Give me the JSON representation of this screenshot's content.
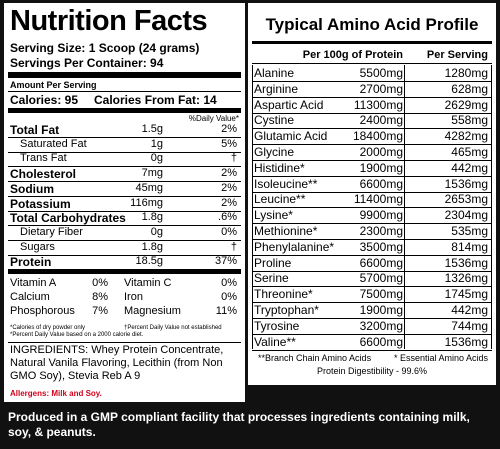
{
  "nutrition": {
    "title": "Nutrition Facts",
    "serving_size": "Serving Size: 1 Scoop (24 grams)",
    "servings": "Servings Per Container: 94",
    "amount_per_serving": "Amount Per Serving",
    "calories": "Calories: 95",
    "calories_fat": "Calories From Fat: 14",
    "dv_header": "%Daily Value*",
    "rows": [
      {
        "name": "Total Fat",
        "amount": "1.5g",
        "dv": "2%",
        "bold": true,
        "indent": false
      },
      {
        "name": "Saturated Fat",
        "amount": "1g",
        "dv": "5%",
        "bold": false,
        "indent": true
      },
      {
        "name": "Trans Fat",
        "amount": "0g",
        "dv": "†",
        "bold": false,
        "indent": true
      },
      {
        "name": "Cholesterol",
        "amount": "7mg",
        "dv": "2%",
        "bold": true,
        "indent": false
      },
      {
        "name": "Sodium",
        "amount": "45mg",
        "dv": "2%",
        "bold": true,
        "indent": false
      },
      {
        "name": "Potassium",
        "amount": "116mg",
        "dv": "2%",
        "bold": true,
        "indent": false
      },
      {
        "name": "Total Carbohydrates",
        "amount": "1.8g",
        "dv": ".6%",
        "bold": true,
        "indent": false
      },
      {
        "name": "Dietary Fiber",
        "amount": "0g",
        "dv": "0%",
        "bold": false,
        "indent": true
      },
      {
        "name": "Sugars",
        "amount": "1.8g",
        "dv": "†",
        "bold": false,
        "indent": true
      },
      {
        "name": "Protein",
        "amount": "18.5g",
        "dv": "37%",
        "bold": true,
        "indent": false
      }
    ],
    "vitamins": [
      [
        "Vitamin A",
        "0%",
        "Vitamin C",
        "0%"
      ],
      [
        "Calcium",
        "8%",
        "Iron",
        "0%"
      ],
      [
        "Phosphorous",
        "7%",
        "Magnesium",
        "11%"
      ]
    ],
    "footnote_calories": "*Calories of dry powder only",
    "footnote_percent": "*Percent Daily Value based on a 2000 calorie diet.",
    "footnote_dagger": "†Percent Daily Value not established",
    "ingredients": "INGREDIENTS: Whey Protein Concentrate, Natural Vanila Flavoring, Lecithin (from Non GMO Soy), Stevia Reb A 9",
    "allergens": "Allergens: Milk and Soy."
  },
  "amino": {
    "title": "Typical Amino Acid Profile",
    "header_100g": "Per 100g of Protein",
    "header_serving": "Per Serving",
    "rows": [
      [
        "Alanine",
        "5500mg",
        "1280mg"
      ],
      [
        "Arginine",
        "2700mg",
        "628mg"
      ],
      [
        "Aspartic Acid",
        "11300mg",
        "2629mg"
      ],
      [
        "Cystine",
        "2400mg",
        "558mg"
      ],
      [
        "Glutamic Acid",
        "18400mg",
        "4282mg"
      ],
      [
        "Glycine",
        "2000mg",
        "465mg"
      ],
      [
        "Histidine*",
        "1900mg",
        "442mg"
      ],
      [
        "Isoleucine**",
        "6600mg",
        "1536mg"
      ],
      [
        "Leucine**",
        "11400mg",
        "2653mg"
      ],
      [
        "Lysine*",
        "9900mg",
        "2304mg"
      ],
      [
        "Methionine*",
        "2300mg",
        "535mg"
      ],
      [
        "Phenylalanine*",
        "3500mg",
        "814mg"
      ],
      [
        "Proline",
        "6600mg",
        "1536mg"
      ],
      [
        "Serine",
        "5700mg",
        "1326mg"
      ],
      [
        "Threonine*",
        "7500mg",
        "1745mg"
      ],
      [
        "Tryptophan*",
        "1900mg",
        "442mg"
      ],
      [
        "Tyrosine",
        "3200mg",
        "744mg"
      ],
      [
        "Valine**",
        "6600mg",
        "1536mg"
      ]
    ],
    "footnote_bcaa": "**Branch Chain Amino Acids",
    "footnote_essential": "* Essential Amino Acids",
    "digestibility": "Protein Digestibility - 99.6%"
  },
  "footer": "Produced in a GMP compliant facility that processes ingredients containing milk, soy, & peanuts."
}
